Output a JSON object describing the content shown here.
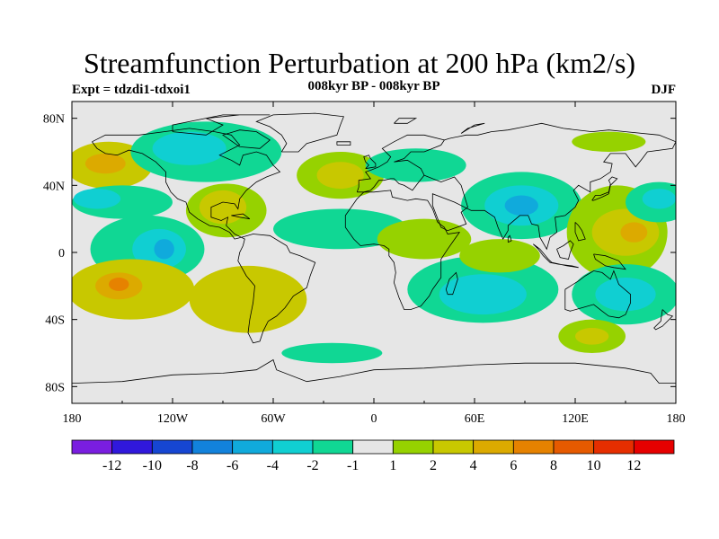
{
  "header": {
    "title": "Streamfunction Perturbation at 200 hPa (km2/s)",
    "subtitle": "008kyr BP - 008kyr BP",
    "experiment": "Expt = tdzdi1-tdxoi1",
    "season": "DJF"
  },
  "map": {
    "x_ticks": [
      "180",
      "120W",
      "60W",
      "0",
      "60E",
      "120E",
      "180"
    ],
    "y_ticks": [
      "80N",
      "40N",
      "0",
      "40S",
      "80S"
    ],
    "land_color": "#e6e6e6"
  },
  "colorbar": {
    "labels": [
      "-12",
      "-10",
      "-8",
      "-6",
      "-4",
      "-2",
      "-1",
      "1",
      "2",
      "4",
      "6",
      "8",
      "10",
      "12"
    ],
    "colors": [
      "#7a1ee0",
      "#3018dc",
      "#1646d2",
      "#1282dc",
      "#10aadc",
      "#10cfd2",
      "#10d794",
      "#e6e6e6",
      "#96d200",
      "#c8c800",
      "#dcaa00",
      "#e68200",
      "#e65a00",
      "#e62e00",
      "#e60000"
    ]
  },
  "contours": [
    {
      "name": "blob-pos-north-pacific",
      "level": "4",
      "color": "#c8c800",
      "lon": -158,
      "lat": 52,
      "rx": 26,
      "ry": 14
    },
    {
      "name": "blob-pos-north-pacific-core",
      "level": "6",
      "color": "#dcaa00",
      "lon": -160,
      "lat": 53,
      "rx": 12,
      "ry": 6
    },
    {
      "name": "blob-neg-canada",
      "level": "-2",
      "color": "#10d794",
      "lon": -100,
      "lat": 60,
      "rx": 45,
      "ry": 18
    },
    {
      "name": "blob-neg-canada-core",
      "level": "-4",
      "color": "#10cfd2",
      "lon": -110,
      "lat": 62,
      "rx": 22,
      "ry": 10
    },
    {
      "name": "blob-neg-east-pacific",
      "level": "-2",
      "color": "#10d794",
      "lon": -150,
      "lat": 30,
      "rx": 30,
      "ry": 10
    },
    {
      "name": "blob-neg-east-pacific-core",
      "level": "-4",
      "color": "#10cfd2",
      "lon": -165,
      "lat": 32,
      "rx": 14,
      "ry": 6
    },
    {
      "name": "blob-pos-gulf-mexico",
      "level": "2",
      "color": "#96d200",
      "lon": -88,
      "lat": 25,
      "rx": 24,
      "ry": 16
    },
    {
      "name": "blob-pos-gulf-mexico-core",
      "level": "4",
      "color": "#c8c800",
      "lon": -90,
      "lat": 27,
      "rx": 14,
      "ry": 10
    },
    {
      "name": "blob-neg-tropical-pacific",
      "level": "-2",
      "color": "#10d794",
      "lon": -135,
      "lat": 2,
      "rx": 34,
      "ry": 20
    },
    {
      "name": "blob-neg-tropical-pacific-core",
      "level": "-4",
      "color": "#10cfd2",
      "lon": -128,
      "lat": 2,
      "rx": 16,
      "ry": 12
    },
    {
      "name": "blob-neg-tropical-pacific-inner",
      "level": "-6",
      "color": "#10aadc",
      "lon": -125,
      "lat": 2,
      "rx": 6,
      "ry": 6
    },
    {
      "name": "blob-pos-south-pacific",
      "level": "4",
      "color": "#c8c800",
      "lon": -145,
      "lat": -22,
      "rx": 38,
      "ry": 18
    },
    {
      "name": "blob-pos-south-pacific-core",
      "level": "6",
      "color": "#dcaa00",
      "lon": -152,
      "lat": -20,
      "rx": 14,
      "ry": 8
    },
    {
      "name": "blob-pos-south-pacific-inner",
      "level": "8",
      "color": "#e68200",
      "lon": -152,
      "lat": -19,
      "rx": 6,
      "ry": 4
    },
    {
      "name": "blob-pos-southeast-pacific",
      "level": "4",
      "color": "#c8c800",
      "lon": -75,
      "lat": -28,
      "rx": 35,
      "ry": 20
    },
    {
      "name": "blob-pos-north-atlantic",
      "level": "2",
      "color": "#96d200",
      "lon": -20,
      "lat": 46,
      "rx": 26,
      "ry": 14
    },
    {
      "name": "blob-pos-north-atlantic-core",
      "level": "4",
      "color": "#c8c800",
      "lon": -20,
      "lat": 46,
      "rx": 14,
      "ry": 8
    },
    {
      "name": "blob-neg-tropical-atlantic",
      "level": "-2",
      "color": "#10d794",
      "lon": -20,
      "lat": 14,
      "rx": 40,
      "ry": 12
    },
    {
      "name": "blob-neg-south-atlantic",
      "level": "-2",
      "color": "#10d794",
      "lon": -25,
      "lat": -60,
      "rx": 30,
      "ry": 6
    },
    {
      "name": "blob-neg-north-africa",
      "level": "-2",
      "color": "#10d794",
      "lon": 25,
      "lat": 52,
      "rx": 30,
      "ry": 10
    },
    {
      "name": "blob-pos-africa",
      "level": "2",
      "color": "#96d200",
      "lon": 30,
      "lat": 8,
      "rx": 28,
      "ry": 12
    },
    {
      "name": "blob-neg-indian-ocean",
      "level": "-2",
      "color": "#10d794",
      "lon": 65,
      "lat": -22,
      "rx": 45,
      "ry": 20
    },
    {
      "name": "blob-neg-indian-ocean-core",
      "level": "-4",
      "color": "#10cfd2",
      "lon": 65,
      "lat": -25,
      "rx": 26,
      "ry": 12
    },
    {
      "name": "blob-neg-tibet",
      "level": "-2",
      "color": "#10d794",
      "lon": 88,
      "lat": 28,
      "rx": 36,
      "ry": 20
    },
    {
      "name": "blob-neg-tibet-core",
      "level": "-4",
      "color": "#10cfd2",
      "lon": 88,
      "lat": 28,
      "rx": 22,
      "ry": 12
    },
    {
      "name": "blob-neg-tibet-inner",
      "level": "-6",
      "color": "#10aadc",
      "lon": 88,
      "lat": 28,
      "rx": 10,
      "ry": 6
    },
    {
      "name": "blob-pos-arabia",
      "level": "2",
      "color": "#96d200",
      "lon": 75,
      "lat": -2,
      "rx": 24,
      "ry": 10
    },
    {
      "name": "blob-pos-west-pacific",
      "level": "2",
      "color": "#96d200",
      "lon": 145,
      "lat": 12,
      "rx": 30,
      "ry": 28
    },
    {
      "name": "blob-pos-west-pacific-core",
      "level": "4",
      "color": "#c8c800",
      "lon": 150,
      "lat": 12,
      "rx": 20,
      "ry": 14
    },
    {
      "name": "blob-pos-west-pacific-inner",
      "level": "6",
      "color": "#dcaa00",
      "lon": 155,
      "lat": 12,
      "rx": 8,
      "ry": 6
    },
    {
      "name": "blob-neg-australia",
      "level": "-2",
      "color": "#10d794",
      "lon": 150,
      "lat": -25,
      "rx": 32,
      "ry": 18
    },
    {
      "name": "blob-neg-australia-core",
      "level": "-4",
      "color": "#10cfd2",
      "lon": 150,
      "lat": -25,
      "rx": 18,
      "ry": 10
    },
    {
      "name": "blob-pos-southern-ocean",
      "level": "2",
      "color": "#96d200",
      "lon": 130,
      "lat": -50,
      "rx": 20,
      "ry": 10
    },
    {
      "name": "blob-pos-southern-ocean-core",
      "level": "4",
      "color": "#c8c800",
      "lon": 130,
      "lat": -50,
      "rx": 10,
      "ry": 5
    },
    {
      "name": "blob-neg-kamchatka",
      "level": "-2",
      "color": "#10d794",
      "lon": 170,
      "lat": 30,
      "rx": 20,
      "ry": 12
    },
    {
      "name": "blob-neg-kamchatka-core",
      "level": "-4",
      "color": "#10cfd2",
      "lon": 170,
      "lat": 32,
      "rx": 10,
      "ry": 6
    },
    {
      "name": "blob-pos-siberia",
      "level": "2",
      "color": "#96d200",
      "lon": 140,
      "lat": 66,
      "rx": 22,
      "ry": 6
    }
  ]
}
